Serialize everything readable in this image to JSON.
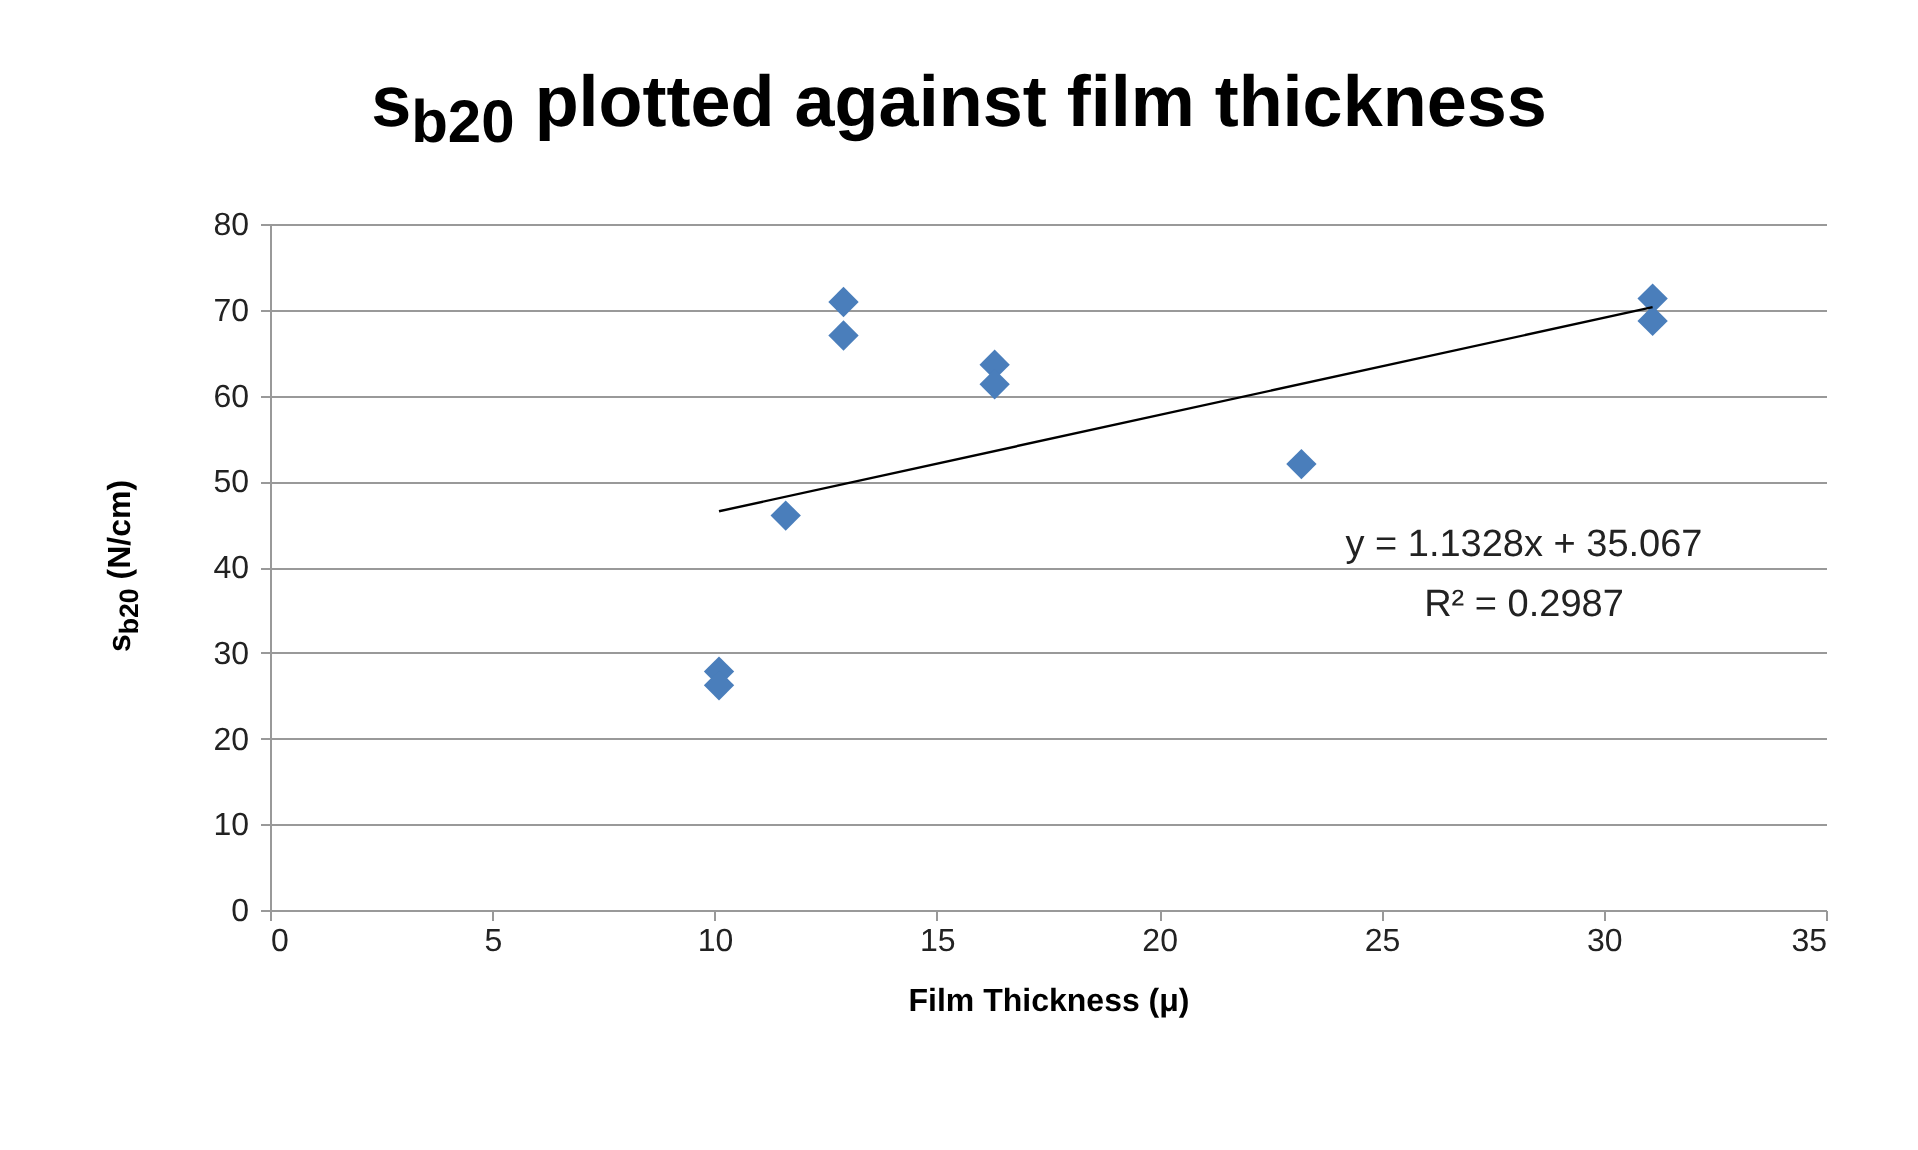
{
  "chart_data": {
    "type": "scatter",
    "title": "s$_{b20}$ plotted against film thickness",
    "xlabel": "Film Thickness (μ)",
    "ylabel": "s$_{b20}$ (N/cm)",
    "annotations": [
      "y = 1.1328x + 35.067",
      "R² = 0.2987"
    ],
    "xlim": [
      0,
      35
    ],
    "xticks": [
      0,
      5,
      10,
      15,
      20,
      25,
      30,
      35
    ],
    "ylim": [
      0,
      80
    ],
    "yticks": [
      0,
      10,
      20,
      30,
      40,
      50,
      60,
      70,
      80
    ],
    "grid": "y",
    "series": [
      {
        "color": "#4a7ebb",
        "marker": "diamond",
        "x": [
          10.1,
          10.1,
          11.6,
          12.9,
          12.9,
          16.3,
          16.3,
          23.2,
          31.1,
          31.1
        ],
        "values": [
          27.8,
          26.2,
          46.0,
          70.9,
          67.0,
          63.6,
          61.3,
          52.0,
          71.3,
          68.7
        ]
      },
      {
        "type": "line",
        "color": "#000000",
        "x": [
          10.1,
          31.1
        ],
        "values": [
          46.5,
          70.3
        ]
      }
    ]
  }
}
